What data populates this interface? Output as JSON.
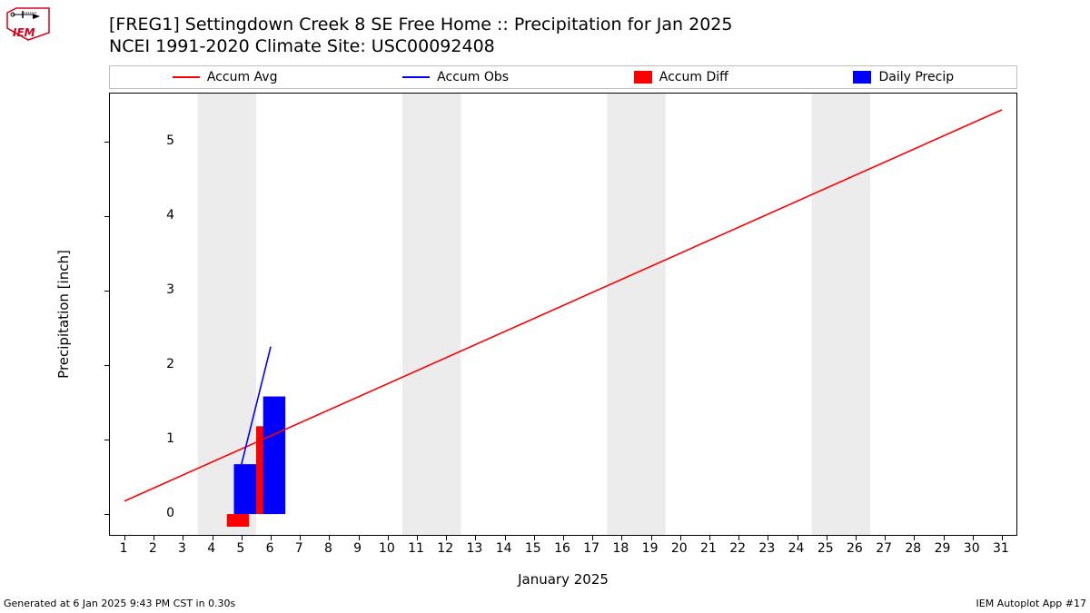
{
  "title_line1": "[FREG1] Settingdown Creek 8 SE Free Home :: Precipitation for Jan 2025",
  "title_line2": "NCEI 1991-2020 Climate Site: USC00092408",
  "ylabel": "Precipitation [inch]",
  "xlabel": "January 2025",
  "footer_left": "Generated at 6 Jan 2025 9:43 PM CST in 0.30s",
  "footer_right": "IEM Autoplot App #17",
  "legend": {
    "accum_avg": "Accum Avg",
    "accum_obs": "Accum Obs",
    "accum_diff": "Accum Diff",
    "daily_precip": "Daily Precip"
  },
  "colors": {
    "accum_avg": "#ff0000",
    "accum_obs": "#0000ff",
    "accum_diff": "#ff0000",
    "daily_precip": "#0000ff",
    "weekend_band": "#ececec",
    "axis": "#000000",
    "background": "#ffffff",
    "legend_border": "#bfbfbf",
    "logo_red": "#d9001b",
    "logo_black": "#000000"
  },
  "chart": {
    "type": "mixed_line_bar",
    "x_days": [
      1,
      2,
      3,
      4,
      5,
      6,
      7,
      8,
      9,
      10,
      11,
      12,
      13,
      14,
      15,
      16,
      17,
      18,
      19,
      20,
      21,
      22,
      23,
      24,
      25,
      26,
      27,
      28,
      29,
      30,
      31
    ],
    "xlim": [
      0.5,
      31.5
    ],
    "ylim": [
      -0.28,
      5.65
    ],
    "yticks": [
      0,
      1,
      2,
      3,
      4,
      5
    ],
    "weekend_bands": [
      [
        4,
        5
      ],
      [
        11,
        12
      ],
      [
        18,
        19
      ],
      [
        25,
        26
      ]
    ],
    "accum_avg_line": {
      "x": [
        1,
        31
      ],
      "y": [
        0.175,
        5.43
      ]
    },
    "accum_obs_line": {
      "x": [
        5,
        6
      ],
      "y": [
        0.67,
        2.25
      ]
    },
    "accum_diff_bars": [
      {
        "x": 5,
        "y": -0.17
      },
      {
        "x": 6,
        "y": 1.18
      }
    ],
    "daily_precip_bars": [
      {
        "x": 5,
        "y": 0.67
      },
      {
        "x": 6,
        "y": 1.58
      }
    ],
    "bar_half_width": 0.38,
    "line_width": 1.6,
    "label_fontsize": 14,
    "title_fontsize": 19
  }
}
